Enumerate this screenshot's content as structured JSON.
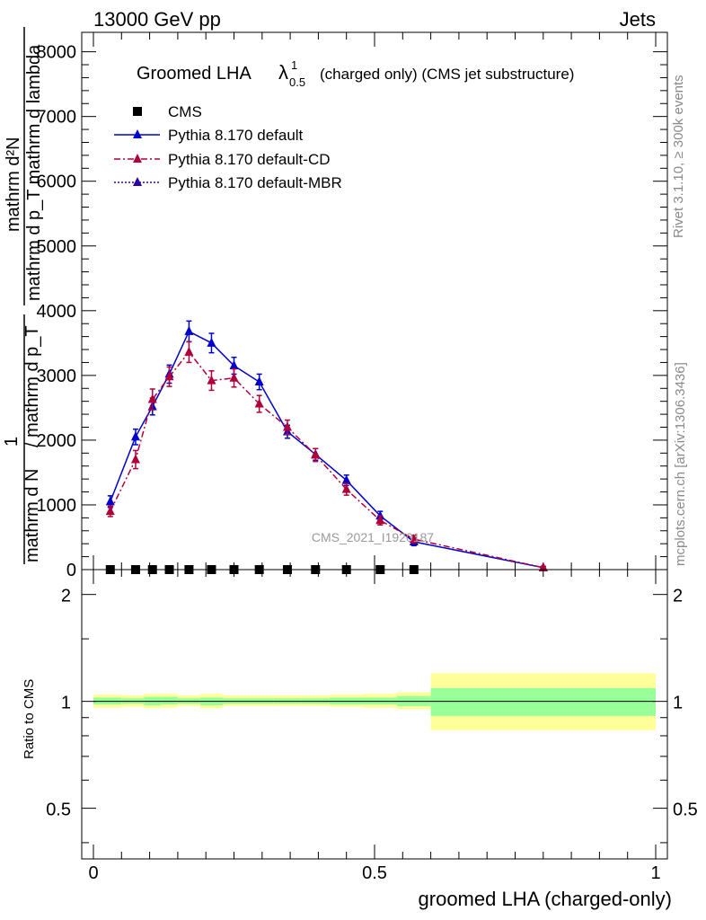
{
  "header": {
    "left": "13000 GeV pp",
    "right": "Jets"
  },
  "side_labels": {
    "rivet": "Rivet 3.1.10, ≥ 300k events",
    "mcplots": "mcplots.cern.ch [arXiv:1306.3436]"
  },
  "chart_data": [
    {
      "type": "line",
      "title": "Groomed LHA λ¹₀.₅ (charged only) (CMS jet substructure)",
      "title_parts": {
        "main": "Groomed LHA ",
        "lambda": "λ",
        "sup": "1",
        "sub": "0.5",
        "rest": "(charged only) (CMS jet substructure)"
      },
      "ylabel": {
        "line1": "mathrm d²N",
        "line2": "mathrm d p_T mathrm d lambda",
        "prefix": "1",
        "den1": "mathrm d N",
        "den2": "/ mathrm d p_T"
      },
      "watermark": "CMS_2021_I1920187",
      "xlim": [
        0,
        1
      ],
      "ylim": [
        0,
        8300
      ],
      "y_ticks": [
        0,
        1000,
        2000,
        3000,
        4000,
        5000,
        6000,
        7000,
        8000
      ],
      "y_tick_labels": [
        "0",
        "1000",
        "2000",
        "3000",
        "4000",
        "5000",
        "6000",
        "7000",
        "8000"
      ],
      "legend_position": "top-left",
      "series": [
        {
          "name": "CMS",
          "color": "#000000",
          "marker": "square",
          "x": [
            0.03,
            0.075,
            0.105,
            0.135,
            0.17,
            0.21,
            0.25,
            0.295,
            0.345,
            0.395,
            0.45,
            0.51,
            0.57
          ],
          "y": [
            0,
            0,
            0,
            0,
            0,
            0,
            0,
            0,
            0,
            0,
            0,
            0,
            0
          ]
        },
        {
          "name": "Pythia 8.170 default",
          "color": "#0000cc",
          "marker": "triangle",
          "line": "solid",
          "x": [
            0.03,
            0.075,
            0.105,
            0.135,
            0.17,
            0.21,
            0.25,
            0.295,
            0.345,
            0.395,
            0.45,
            0.51,
            0.57,
            0.8
          ],
          "y": [
            1050,
            2050,
            2520,
            3020,
            3680,
            3500,
            3150,
            2900,
            2130,
            1780,
            1380,
            830,
            430,
            30
          ],
          "err": [
            90,
            120,
            130,
            140,
            160,
            150,
            130,
            120,
            100,
            90,
            80,
            70,
            60,
            20
          ]
        },
        {
          "name": "Pythia 8.170 default-CD",
          "color": "#b0003a",
          "marker": "triangle",
          "line": "dashdot",
          "x": [
            0.03,
            0.075,
            0.105,
            0.135,
            0.17,
            0.21,
            0.25,
            0.295,
            0.345,
            0.395,
            0.45,
            0.51,
            0.57,
            0.8
          ],
          "y": [
            900,
            1700,
            2630,
            2980,
            3360,
            2920,
            2960,
            2560,
            2200,
            1770,
            1240,
            760,
            470,
            30
          ],
          "err": [
            80,
            140,
            160,
            150,
            160,
            150,
            140,
            130,
            110,
            100,
            90,
            70,
            60,
            20
          ]
        },
        {
          "name": "Pythia 8.170 default-MBR",
          "color": "#2a00a0",
          "marker": "triangle",
          "line": "dotted",
          "x": [],
          "y": []
        }
      ]
    },
    {
      "type": "area",
      "ylabel": "Ratio to CMS",
      "xlabel": "groomed LHA (charged-only)",
      "xlim": [
        0,
        1
      ],
      "ylim": [
        0.36,
        2.35
      ],
      "y_scale": "log",
      "y_ticks": [
        0.5,
        1,
        2
      ],
      "y_tick_labels": [
        "0.5",
        "1",
        "2"
      ],
      "x_ticks": [
        0,
        0.5,
        1
      ],
      "x_tick_labels": [
        "0",
        "0.5",
        "1"
      ],
      "reference_line": 1,
      "bands": {
        "edges": [
          0,
          0.05,
          0.09,
          0.12,
          0.15,
          0.19,
          0.23,
          0.27,
          0.32,
          0.37,
          0.42,
          0.48,
          0.54,
          0.6,
          1.0
        ],
        "inner_lo": [
          0.98,
          0.985,
          0.975,
          0.98,
          0.985,
          0.975,
          0.985,
          0.985,
          0.985,
          0.985,
          0.98,
          0.98,
          0.97,
          0.91
        ],
        "inner_hi": [
          1.025,
          1.02,
          1.03,
          1.03,
          1.02,
          1.025,
          1.02,
          1.02,
          1.02,
          1.02,
          1.025,
          1.025,
          1.035,
          1.09
        ],
        "outer_lo": [
          0.96,
          0.965,
          0.955,
          0.96,
          0.97,
          0.955,
          0.97,
          0.97,
          0.97,
          0.97,
          0.965,
          0.96,
          0.95,
          0.83
        ],
        "outer_hi": [
          1.045,
          1.04,
          1.05,
          1.05,
          1.04,
          1.05,
          1.04,
          1.04,
          1.04,
          1.04,
          1.045,
          1.05,
          1.06,
          1.2
        ],
        "inner_color": "#99ff99",
        "outer_color": "#ffff99"
      }
    }
  ]
}
